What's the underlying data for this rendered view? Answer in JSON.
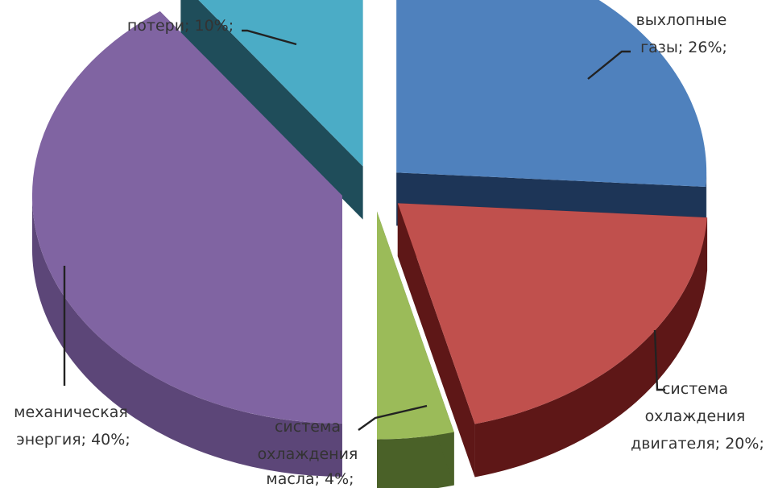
{
  "chart_data": {
    "type": "pie",
    "style": "3d-exploded",
    "unit": "%",
    "slices": [
      {
        "key": "exhaust",
        "label_lines": [
          "выхлопные",
          "газы; 26%;"
        ],
        "value": 26,
        "color": "#4f81bd",
        "side_color": "#1d3557"
      },
      {
        "key": "engine_cooling",
        "label_lines": [
          "система",
          "охлаждения",
          "двигателя; 20%;"
        ],
        "value": 20,
        "color": "#c0504d",
        "side_color": "#5e1717"
      },
      {
        "key": "oil_cooling",
        "label_lines": [
          "система",
          "охлаждения",
          "масла; 4%;"
        ],
        "value": 4,
        "color": "#9bbb59",
        "side_color": "#4a6128"
      },
      {
        "key": "mechanical",
        "label_lines": [
          "механическая",
          "энергия; 40%;"
        ],
        "value": 40,
        "color": "#8064a2",
        "side_color": "#5c4678"
      },
      {
        "key": "losses",
        "label_lines": [
          "потери; 10%;"
        ],
        "value": 10,
        "color": "#4bacc6",
        "side_color": "#1f4d5a"
      }
    ]
  }
}
